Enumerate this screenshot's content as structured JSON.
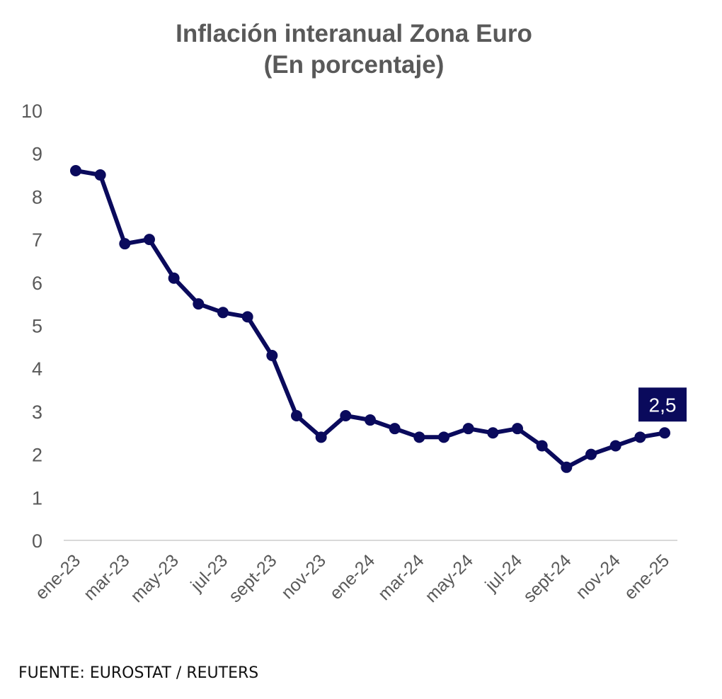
{
  "chart_data": {
    "type": "line",
    "title": "Inflación interanual Zona Euro",
    "subtitle": "(En porcentaje)",
    "xlabel": "",
    "ylabel": "",
    "ylim": [
      0,
      10
    ],
    "yticks": [
      "0",
      "1",
      "2",
      "3",
      "4",
      "5",
      "6",
      "7",
      "8",
      "9",
      "10"
    ],
    "x": [
      "ene-23",
      "feb-23",
      "mar-23",
      "abr-23",
      "may-23",
      "jun-23",
      "jul-23",
      "ago-23",
      "sept-23",
      "oct-23",
      "nov-23",
      "dic-23",
      "ene-24",
      "feb-24",
      "mar-24",
      "abr-24",
      "may-24",
      "jun-24",
      "jul-24",
      "ago-24",
      "sept-24",
      "oct-24",
      "nov-24",
      "dic-24",
      "ene-25"
    ],
    "xtick_labels": [
      "ene-23",
      "mar-23",
      "may-23",
      "jul-23",
      "sept-23",
      "nov-23",
      "ene-24",
      "mar-24",
      "may-24",
      "jul-24",
      "sept-24",
      "nov-24",
      "ene-25"
    ],
    "series": [
      {
        "name": "Inflación interanual",
        "color": "#0a0a5c",
        "values": [
          8.6,
          8.5,
          6.9,
          7.0,
          6.1,
          5.5,
          5.3,
          5.2,
          4.3,
          2.9,
          2.4,
          2.9,
          2.8,
          2.6,
          2.4,
          2.4,
          2.6,
          2.5,
          2.6,
          2.2,
          1.7,
          2.0,
          2.2,
          2.4,
          2.5
        ]
      }
    ],
    "annotations": [
      {
        "x": "ene-25",
        "text": "2,5",
        "background": "#0a0a5c",
        "color": "#ffffff"
      }
    ],
    "grid": false,
    "legend": "none"
  },
  "source": "FUENTE: EUROSTAT / REUTERS"
}
